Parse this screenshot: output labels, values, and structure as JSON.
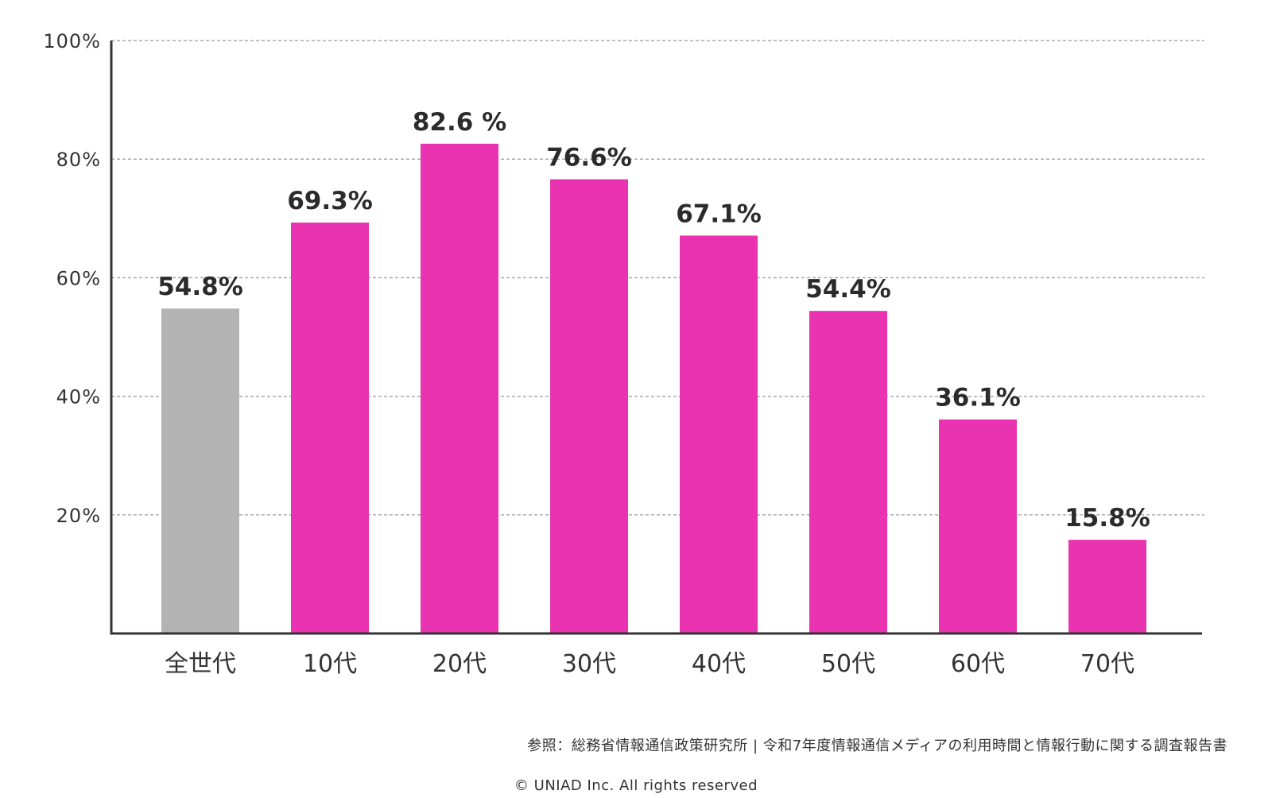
{
  "colors": {
    "overall_bar": "#B3B3B3",
    "age_bar": "#EA33B0",
    "axis": "#333333",
    "grid": "#AAAAAA",
    "label_text": "#2B2B2B"
  },
  "chart_data": {
    "type": "bar",
    "title": "",
    "xlabel": "",
    "ylabel": "",
    "ylim": [
      0,
      100
    ],
    "yticks": [
      {
        "value": 20,
        "label": "20%"
      },
      {
        "value": 40,
        "label": "40%"
      },
      {
        "value": 60,
        "label": "60%"
      },
      {
        "value": 80,
        "label": "80%"
      },
      {
        "value": 100,
        "label": "100%"
      }
    ],
    "grid": true,
    "grid_style": "dashed",
    "legend": "none",
    "categories": [
      "全世代",
      "10代",
      "20代",
      "30代",
      "40代",
      "50代",
      "60代",
      "70代"
    ],
    "values": [
      54.8,
      69.3,
      82.6,
      76.6,
      67.1,
      54.4,
      36.1,
      15.8
    ],
    "value_labels": [
      "54.8%",
      "69.3%",
      "82.6 %",
      "76.6%",
      "67.1%",
      "54.4%",
      "36.1%",
      "15.8%"
    ],
    "bar_colors": [
      "#B3B3B3",
      "#EA33B0",
      "#EA33B0",
      "#EA33B0",
      "#EA33B0",
      "#EA33B0",
      "#EA33B0",
      "#EA33B0"
    ]
  },
  "footer": {
    "source": "参照：総務省情報通信政策研究所 | 令和7年度情報通信メディアの利用時間と情報行動に関する調査報告書",
    "copyright": "© UNIAD Inc. All rights reserved"
  }
}
